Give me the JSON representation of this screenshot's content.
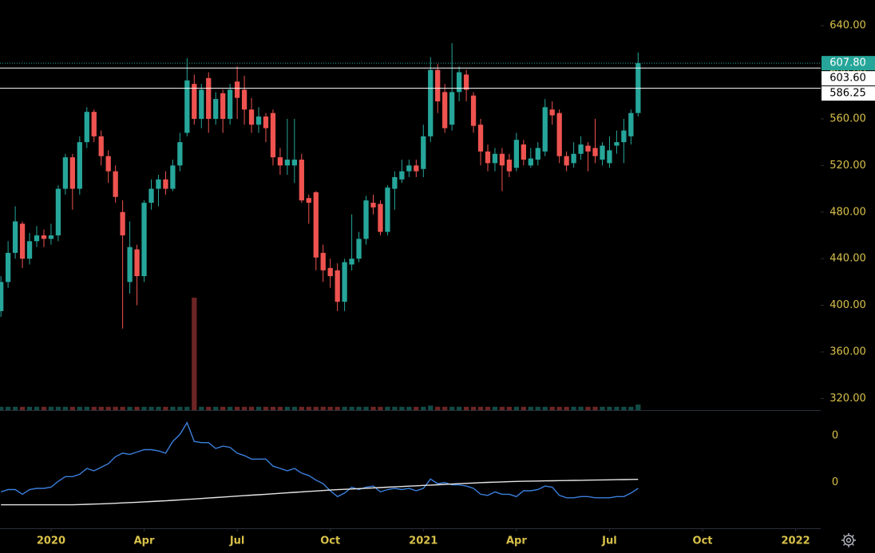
{
  "chart_data": {
    "type": "candlestick",
    "x": [
      -7,
      -6,
      -5,
      -4,
      -3,
      -2,
      -1,
      0,
      1,
      2,
      3,
      4,
      5,
      6,
      7,
      8,
      9,
      10,
      11,
      12,
      13,
      14,
      15,
      16,
      17,
      18,
      19,
      20,
      21,
      22,
      23,
      24,
      25,
      26,
      27,
      28,
      29,
      30,
      31,
      32,
      33,
      34,
      35,
      36,
      37,
      38,
      39,
      40,
      41,
      42,
      43,
      44,
      45,
      46,
      47,
      48,
      49,
      50,
      51,
      52,
      53,
      54,
      55,
      56,
      57,
      58,
      59,
      60,
      61,
      62,
      63,
      64,
      65,
      66,
      67,
      68,
      69,
      70,
      71,
      72,
      73,
      74,
      75,
      76,
      77,
      78,
      79,
      80,
      81,
      82
    ],
    "open": [
      395,
      420,
      445,
      470,
      440,
      455,
      460,
      457,
      460,
      500,
      527,
      500,
      540,
      566,
      545,
      528,
      515,
      480,
      420,
      448,
      425,
      488,
      500,
      508,
      500,
      520,
      548,
      590,
      560,
      595,
      560,
      582,
      560,
      592,
      585,
      568,
      555,
      562,
      565,
      527,
      520,
      520,
      525,
      492,
      497,
      445,
      432,
      430,
      403,
      435,
      440,
      457,
      488,
      487,
      463,
      500,
      508,
      515,
      520,
      517,
      545,
      602,
      583,
      555,
      583,
      598,
      580,
      555,
      532,
      522,
      530,
      525,
      518,
      538,
      520,
      525,
      532,
      568,
      565,
      528,
      522,
      530,
      537,
      535,
      525,
      522,
      537,
      540,
      545,
      565
    ],
    "high": [
      425,
      455,
      485,
      472,
      462,
      468,
      465,
      470,
      503,
      530,
      530,
      545,
      570,
      568,
      550,
      533,
      520,
      490,
      472,
      452,
      490,
      508,
      512,
      515,
      525,
      548,
      612,
      598,
      590,
      600,
      583,
      585,
      590,
      605,
      597,
      578,
      570,
      565,
      568,
      535,
      560,
      560,
      530,
      495,
      498,
      452,
      440,
      436,
      440,
      478,
      463,
      494,
      495,
      490,
      503,
      515,
      525,
      525,
      525,
      555,
      613,
      607,
      590,
      625,
      605,
      602,
      583,
      560,
      538,
      535,
      535,
      530,
      548,
      542,
      535,
      540,
      577,
      575,
      568,
      532,
      540,
      545,
      540,
      560,
      540,
      545,
      550,
      560,
      568,
      617
    ],
    "low": [
      390,
      415,
      440,
      432,
      435,
      450,
      450,
      452,
      455,
      495,
      482,
      495,
      535,
      540,
      520,
      505,
      488,
      380,
      410,
      400,
      420,
      482,
      485,
      495,
      498,
      515,
      545,
      555,
      552,
      548,
      555,
      548,
      555,
      560,
      555,
      548,
      548,
      540,
      520,
      512,
      512,
      505,
      488,
      470,
      430,
      420,
      415,
      395,
      395,
      430,
      437,
      452,
      478,
      460,
      460,
      482,
      505,
      510,
      510,
      510,
      540,
      565,
      548,
      550,
      575,
      575,
      548,
      520,
      515,
      515,
      498,
      510,
      515,
      520,
      518,
      520,
      528,
      555,
      522,
      515,
      518,
      525,
      515,
      522,
      520,
      518,
      530,
      522,
      538,
      562
    ],
    "close": [
      420,
      445,
      472,
      440,
      455,
      460,
      457,
      460,
      500,
      527,
      500,
      540,
      566,
      545,
      528,
      515,
      493,
      460,
      450,
      425,
      488,
      500,
      508,
      500,
      520,
      540,
      593,
      560,
      585,
      560,
      577,
      560,
      585,
      578,
      568,
      555,
      562,
      552,
      527,
      520,
      525,
      525,
      490,
      488,
      441,
      430,
      425,
      403,
      437,
      440,
      457,
      490,
      484,
      463,
      501,
      510,
      515,
      520,
      515,
      545,
      602,
      575,
      552,
      583,
      600,
      585,
      554,
      532,
      522,
      530,
      520,
      515,
      542,
      525,
      526,
      535,
      570,
      563,
      528,
      520,
      530,
      538,
      532,
      528,
      537,
      533,
      540,
      550,
      565,
      607.8
    ],
    "volume": [
      3,
      3,
      3,
      3,
      3,
      3,
      3,
      3,
      3,
      3,
      3,
      3,
      3,
      3,
      3,
      3,
      3,
      3,
      3,
      3,
      3,
      3,
      3,
      3,
      3,
      3,
      3,
      100,
      3,
      3,
      3,
      3,
      3,
      3,
      3,
      3,
      3,
      3,
      3,
      3,
      3,
      3,
      3,
      3,
      3,
      3,
      3,
      3,
      3,
      3,
      3,
      3,
      3,
      3,
      3,
      3,
      3,
      3,
      3,
      3,
      4,
      3,
      3,
      3,
      3,
      3,
      3,
      3,
      3,
      3,
      3,
      3,
      3,
      3,
      3,
      3,
      3,
      3,
      3,
      3,
      3,
      3,
      3,
      3,
      3,
      3,
      3,
      3,
      3,
      5
    ],
    "up_color": "#26a69a",
    "down_color": "#ef5350",
    "xlim": [
      -7.13,
      107.5
    ],
    "xticks": [
      {
        "value": 0,
        "label": "2020"
      },
      {
        "value": 13,
        "label": "Apr"
      },
      {
        "value": 26,
        "label": "Jul"
      },
      {
        "value": 39,
        "label": "Oct"
      },
      {
        "value": 52,
        "label": "2021"
      },
      {
        "value": 65,
        "label": "Apr"
      },
      {
        "value": 78,
        "label": "Jul"
      },
      {
        "value": 91,
        "label": "Oct"
      },
      {
        "value": 104,
        "label": "2022"
      }
    ],
    "ylim": [
      310,
      662
    ],
    "yticks": [
      {
        "value": 320,
        "label": "320.00"
      },
      {
        "value": 360,
        "label": "360.00"
      },
      {
        "value": 400,
        "label": "400.00"
      },
      {
        "value": 440,
        "label": "440.00"
      },
      {
        "value": 480,
        "label": "480.00"
      },
      {
        "value": 520,
        "label": "520.00"
      },
      {
        "value": 560,
        "label": "560.00"
      },
      {
        "value": 600,
        "label": "600.00"
      },
      {
        "value": 640,
        "label": "640.00"
      }
    ],
    "price_lines": [
      {
        "value": 603.6,
        "label": "603.60"
      },
      {
        "value": 586.25,
        "label": "586.25"
      }
    ],
    "last_price": {
      "value": 607.8,
      "label": "607.80"
    },
    "indicator": {
      "ylim": [
        -0.39,
        0.61
      ],
      "yticks": [
        {
          "value": 0.4,
          "label": "0"
        },
        0
      ],
      "series": [
        {
          "color": "#3b7fdc",
          "values": [
            -0.08,
            -0.06,
            -0.06,
            -0.1,
            -0.06,
            -0.05,
            -0.05,
            -0.04,
            0.01,
            0.05,
            0.05,
            0.07,
            0.12,
            0.1,
            0.13,
            0.16,
            0.22,
            0.25,
            0.24,
            0.26,
            0.28,
            0.28,
            0.27,
            0.25,
            0.35,
            0.41,
            0.51,
            0.35,
            0.34,
            0.34,
            0.29,
            0.31,
            0.3,
            0.25,
            0.23,
            0.2,
            0.2,
            0.2,
            0.14,
            0.12,
            0.1,
            0.12,
            0.08,
            0.06,
            0.02,
            -0.01,
            -0.07,
            -0.12,
            -0.09,
            -0.04,
            -0.06,
            -0.04,
            -0.03,
            -0.08,
            -0.06,
            -0.05,
            -0.06,
            -0.05,
            -0.07,
            -0.05,
            0.03,
            -0.01,
            0,
            -0.02,
            -0.02,
            -0.03,
            -0.05,
            -0.1,
            -0.11,
            -0.08,
            -0.1,
            -0.1,
            -0.12,
            -0.07,
            -0.07,
            -0.06,
            -0.03,
            -0.04,
            -0.11,
            -0.13,
            -0.13,
            -0.12,
            -0.12,
            -0.13,
            -0.13,
            -0.13,
            -0.12,
            -0.12,
            -0.09,
            -0.05
          ]
        },
        {
          "color": "#e6e6e6",
          "values": [
            -0.19,
            -0.19,
            -0.19,
            -0.19,
            -0.19,
            -0.19,
            -0.19,
            -0.19,
            -0.19,
            -0.19,
            -0.19,
            -0.188,
            -0.186,
            -0.184,
            -0.182,
            -0.18,
            -0.177,
            -0.174,
            -0.171,
            -0.168,
            -0.165,
            -0.162,
            -0.159,
            -0.156,
            -0.152,
            -0.148,
            -0.144,
            -0.14,
            -0.136,
            -0.132,
            -0.128,
            -0.124,
            -0.12,
            -0.116,
            -0.112,
            -0.108,
            -0.104,
            -0.1,
            -0.096,
            -0.092,
            -0.088,
            -0.084,
            -0.08,
            -0.076,
            -0.072,
            -0.068,
            -0.064,
            -0.061,
            -0.058,
            -0.055,
            -0.052,
            -0.049,
            -0.046,
            -0.043,
            -0.04,
            -0.037,
            -0.034,
            -0.031,
            -0.028,
            -0.025,
            -0.022,
            -0.019,
            -0.016,
            -0.013,
            -0.01,
            -0.007,
            -0.004,
            -0.001,
            0.001,
            0.003,
            0.005,
            0.007,
            0.009,
            0.011,
            0.012,
            0.013,
            0.014,
            0.015,
            0.016,
            0.017,
            0.018,
            0.019,
            0.02,
            0.021,
            0.022,
            0.023,
            0.024,
            0.025,
            0.026,
            0.027
          ]
        }
      ]
    }
  }
}
